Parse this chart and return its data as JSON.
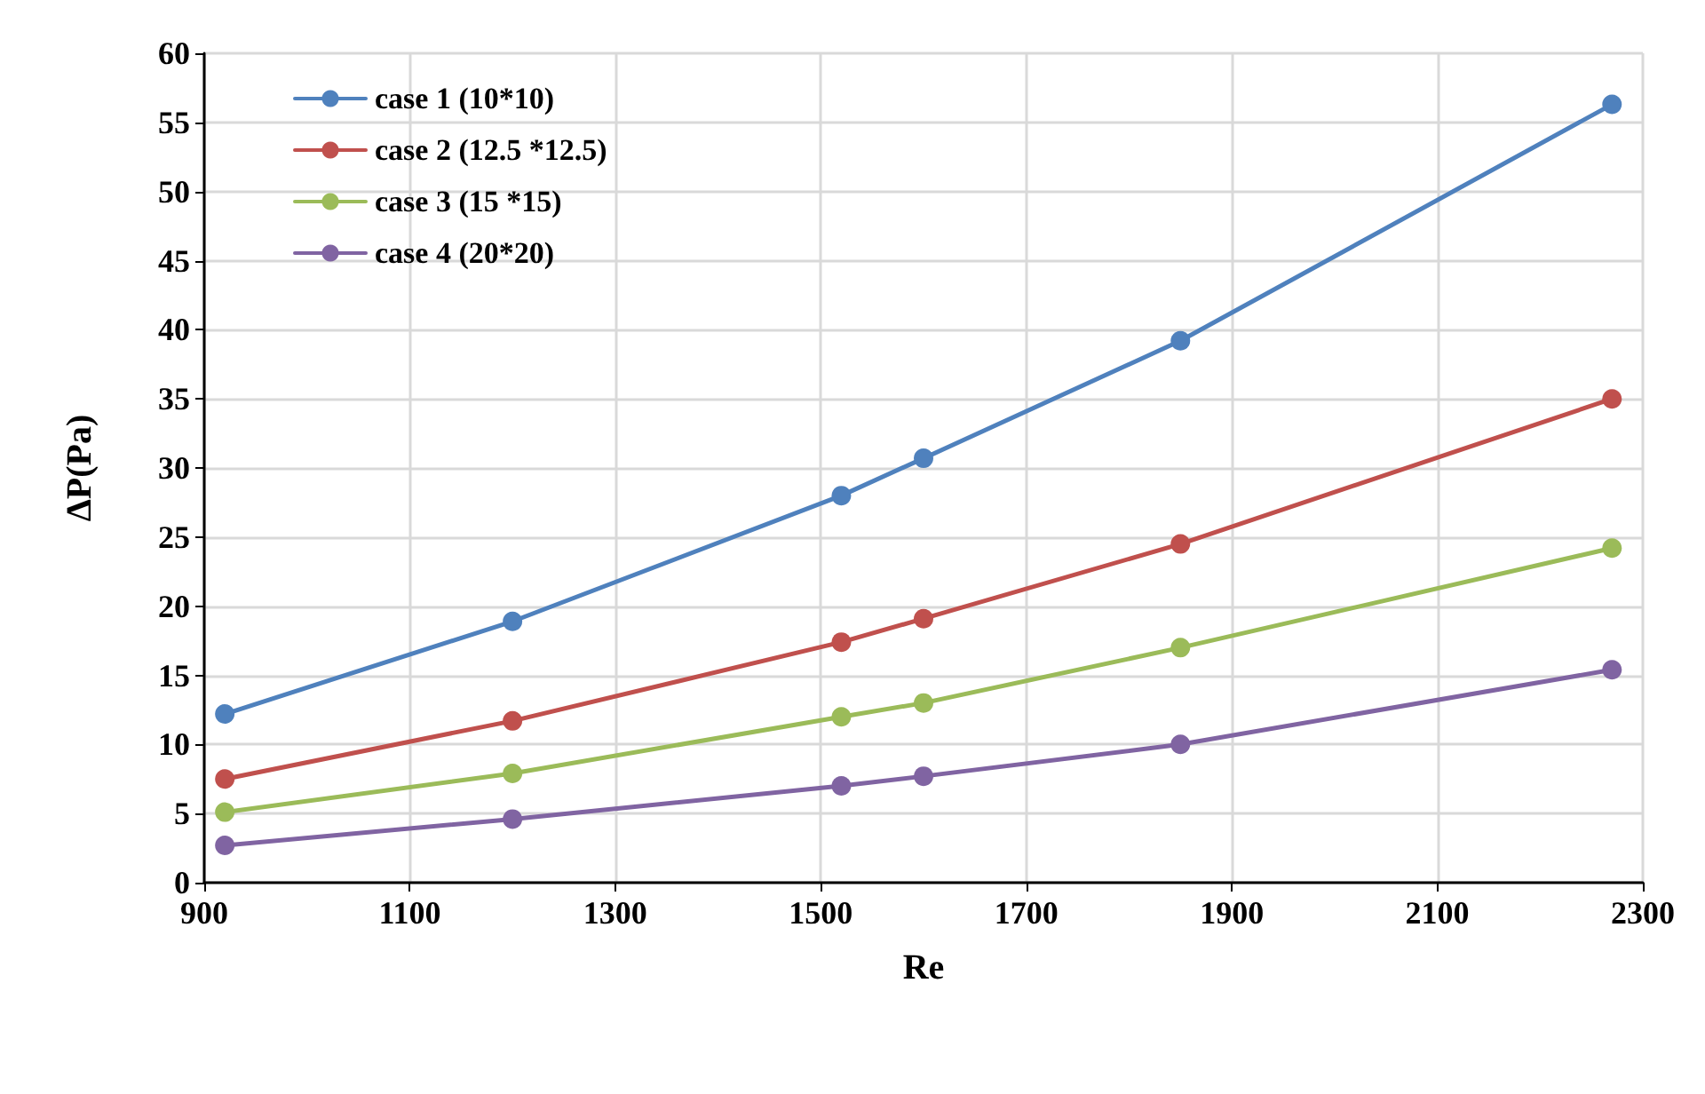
{
  "chart_data": {
    "type": "line",
    "xlabel": "Re",
    "ylabel": "ΔP(Pa)",
    "xlim": [
      900,
      2300
    ],
    "xticks": [
      900,
      1100,
      1300,
      1500,
      1700,
      1900,
      2100,
      2300
    ],
    "ylim": [
      0,
      60
    ],
    "yticks": [
      0,
      5,
      10,
      15,
      20,
      25,
      30,
      35,
      40,
      45,
      50,
      55,
      60
    ],
    "x": [
      920,
      1200,
      1520,
      1600,
      1850,
      2270
    ],
    "grid": true,
    "legend": "top left",
    "marker": "circle",
    "line_style": "solid",
    "series": [
      {
        "name": "case 1 (10*10)",
        "color": "#4f81bd",
        "values": [
          12.2,
          18.9,
          28,
          30.7,
          39.2,
          56.3
        ]
      },
      {
        "name": "case 2 (12.5 *12.5)",
        "color": "#c0504d",
        "values": [
          7.5,
          11.7,
          17.4,
          19.1,
          24.5,
          35
        ]
      },
      {
        "name": "case 3 (15 *15)",
        "color": "#9bbb59",
        "values": [
          5.1,
          7.9,
          12,
          13,
          17,
          24.2
        ]
      },
      {
        "name": "case 4 (20*20)",
        "color": "#8064a2",
        "values": [
          2.7,
          4.6,
          7,
          7.7,
          10,
          15.4
        ]
      }
    ]
  }
}
